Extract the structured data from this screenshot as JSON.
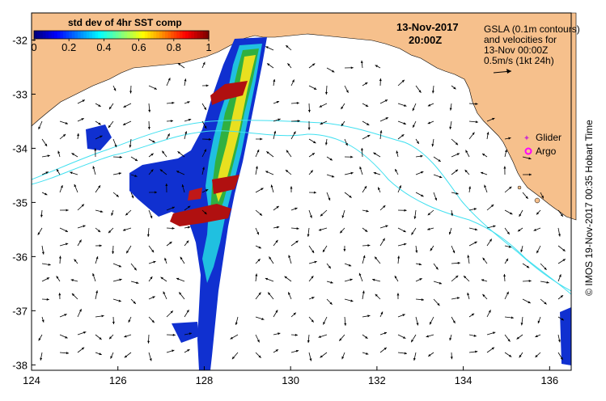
{
  "colorbar": {
    "title": "std dev of 4hr SST comp",
    "ticks": [
      "0",
      "0.2",
      "0.4",
      "0.6",
      "0.8",
      "1"
    ],
    "tick_values": [
      0,
      0.2,
      0.4,
      0.6,
      0.8,
      1.0
    ],
    "colors": [
      "#000080",
      "#0000ff",
      "#0080ff",
      "#00ffff",
      "#80ff80",
      "#ffff00",
      "#ff8000",
      "#ff0000",
      "#800000"
    ]
  },
  "header": {
    "date": "13-Nov-2017",
    "time": "20:00Z"
  },
  "legend": {
    "line1": "GSLA (0.1m contours)",
    "line2": "and velocities for",
    "line3": "13-Nov 00:00Z",
    "line4": "0.5m/s (1kt 24h)"
  },
  "markers": {
    "glider_label": "Glider",
    "argo_label": "Argo",
    "glider_color": "#cc33cc",
    "argo_color": "#ff00ff"
  },
  "axes": {
    "x_ticks": [
      "124",
      "126",
      "128",
      "130",
      "132",
      "134",
      "136"
    ],
    "x_values": [
      124,
      126,
      128,
      130,
      132,
      134,
      136
    ],
    "y_ticks": [
      "-32",
      "-33",
      "-34",
      "-35",
      "-36",
      "-37",
      "-38"
    ],
    "y_values": [
      -32,
      -33,
      -34,
      -35,
      -36,
      -37,
      -38
    ],
    "lon_range": [
      124,
      136.5
    ],
    "lat_range": [
      -38.1,
      -31.5
    ]
  },
  "credit": "© IMOS 19-Nov-2017 00:35 Hobart Time",
  "colors": {
    "land": "#f6c08c",
    "contour": "#40e0f0",
    "ocean": "#ffffff"
  }
}
